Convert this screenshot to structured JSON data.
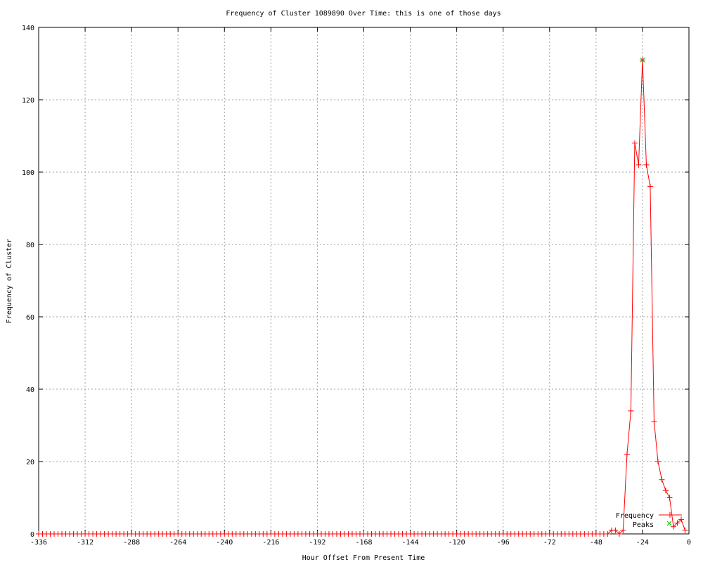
{
  "chart_data": {
    "type": "line",
    "title": "Frequency of Cluster 1089890 Over Time: this is one of those days",
    "xlabel": "Hour Offset From Present Time",
    "ylabel": "Frequency of Cluster",
    "xlim": [
      -336,
      0
    ],
    "ylim": [
      0,
      140
    ],
    "xticks": [
      "-336",
      "-312",
      "-288",
      "-264",
      "-240",
      "-216",
      "-192",
      "-168",
      "-144",
      "-120",
      "-96",
      "-72",
      "-48",
      "-24",
      "0"
    ],
    "yticks": [
      "0",
      "20",
      "40",
      "60",
      "80",
      "100",
      "120",
      "140"
    ],
    "grid": true,
    "legend_position": "bottom-right",
    "series": [
      {
        "name": "Frequency",
        "color": "#ff0000",
        "marker": "plus",
        "points": [
          [
            -336,
            0
          ],
          [
            -334,
            0
          ],
          [
            -332,
            0
          ],
          [
            -330,
            0
          ],
          [
            -328,
            0
          ],
          [
            -326,
            0
          ],
          [
            -324,
            0
          ],
          [
            -322,
            0
          ],
          [
            -320,
            0
          ],
          [
            -318,
            0
          ],
          [
            -316,
            0
          ],
          [
            -314,
            0
          ],
          [
            -312,
            0
          ],
          [
            -310,
            0
          ],
          [
            -308,
            0
          ],
          [
            -306,
            0
          ],
          [
            -304,
            0
          ],
          [
            -302,
            0
          ],
          [
            -300,
            0
          ],
          [
            -298,
            0
          ],
          [
            -296,
            0
          ],
          [
            -294,
            0
          ],
          [
            -292,
            0
          ],
          [
            -290,
            0
          ],
          [
            -288,
            0
          ],
          [
            -286,
            0
          ],
          [
            -284,
            0
          ],
          [
            -282,
            0
          ],
          [
            -280,
            0
          ],
          [
            -278,
            0
          ],
          [
            -276,
            0
          ],
          [
            -274,
            0
          ],
          [
            -272,
            0
          ],
          [
            -270,
            0
          ],
          [
            -268,
            0
          ],
          [
            -266,
            0
          ],
          [
            -264,
            0
          ],
          [
            -262,
            0
          ],
          [
            -260,
            0
          ],
          [
            -258,
            0
          ],
          [
            -256,
            0
          ],
          [
            -254,
            0
          ],
          [
            -252,
            0
          ],
          [
            -250,
            0
          ],
          [
            -248,
            0
          ],
          [
            -246,
            0
          ],
          [
            -244,
            0
          ],
          [
            -242,
            0
          ],
          [
            -240,
            0
          ],
          [
            -238,
            0
          ],
          [
            -236,
            0
          ],
          [
            -234,
            0
          ],
          [
            -232,
            0
          ],
          [
            -230,
            0
          ],
          [
            -228,
            0
          ],
          [
            -226,
            0
          ],
          [
            -224,
            0
          ],
          [
            -222,
            0
          ],
          [
            -220,
            0
          ],
          [
            -218,
            0
          ],
          [
            -216,
            0
          ],
          [
            -214,
            0
          ],
          [
            -212,
            0
          ],
          [
            -210,
            0
          ],
          [
            -208,
            0
          ],
          [
            -206,
            0
          ],
          [
            -204,
            0
          ],
          [
            -202,
            0
          ],
          [
            -200,
            0
          ],
          [
            -198,
            0
          ],
          [
            -196,
            0
          ],
          [
            -194,
            0
          ],
          [
            -192,
            0
          ],
          [
            -190,
            0
          ],
          [
            -188,
            0
          ],
          [
            -186,
            0
          ],
          [
            -184,
            0
          ],
          [
            -182,
            0
          ],
          [
            -180,
            0
          ],
          [
            -178,
            0
          ],
          [
            -176,
            0
          ],
          [
            -174,
            0
          ],
          [
            -172,
            0
          ],
          [
            -170,
            0
          ],
          [
            -168,
            0
          ],
          [
            -166,
            0
          ],
          [
            -164,
            0
          ],
          [
            -162,
            0
          ],
          [
            -160,
            0
          ],
          [
            -158,
            0
          ],
          [
            -156,
            0
          ],
          [
            -154,
            0
          ],
          [
            -152,
            0
          ],
          [
            -150,
            0
          ],
          [
            -148,
            0
          ],
          [
            -146,
            0
          ],
          [
            -144,
            0
          ],
          [
            -142,
            0
          ],
          [
            -140,
            0
          ],
          [
            -138,
            0
          ],
          [
            -136,
            0
          ],
          [
            -134,
            0
          ],
          [
            -132,
            0
          ],
          [
            -130,
            0
          ],
          [
            -128,
            0
          ],
          [
            -126,
            0
          ],
          [
            -124,
            0
          ],
          [
            -122,
            0
          ],
          [
            -120,
            0
          ],
          [
            -118,
            0
          ],
          [
            -116,
            0
          ],
          [
            -114,
            0
          ],
          [
            -112,
            0
          ],
          [
            -110,
            0
          ],
          [
            -108,
            0
          ],
          [
            -106,
            0
          ],
          [
            -104,
            0
          ],
          [
            -102,
            0
          ],
          [
            -100,
            0
          ],
          [
            -98,
            0
          ],
          [
            -96,
            0
          ],
          [
            -94,
            0
          ],
          [
            -92,
            0
          ],
          [
            -90,
            0
          ],
          [
            -88,
            0
          ],
          [
            -86,
            0
          ],
          [
            -84,
            0
          ],
          [
            -82,
            0
          ],
          [
            -80,
            0
          ],
          [
            -78,
            0
          ],
          [
            -76,
            0
          ],
          [
            -74,
            0
          ],
          [
            -72,
            0
          ],
          [
            -70,
            0
          ],
          [
            -68,
            0
          ],
          [
            -66,
            0
          ],
          [
            -64,
            0
          ],
          [
            -62,
            0
          ],
          [
            -60,
            0
          ],
          [
            -58,
            0
          ],
          [
            -56,
            0
          ],
          [
            -54,
            0
          ],
          [
            -52,
            0
          ],
          [
            -50,
            0
          ],
          [
            -48,
            0
          ],
          [
            -46,
            0
          ],
          [
            -44,
            0
          ],
          [
            -42,
            0
          ],
          [
            -40,
            1
          ],
          [
            -38,
            1
          ],
          [
            -36,
            0
          ],
          [
            -34,
            1
          ],
          [
            -32,
            22
          ],
          [
            -30,
            34
          ],
          [
            -28,
            108
          ],
          [
            -26,
            102
          ],
          [
            -24,
            131
          ],
          [
            -22,
            102
          ],
          [
            -20,
            96
          ],
          [
            -18,
            31
          ],
          [
            -16,
            20
          ],
          [
            -14,
            15
          ],
          [
            -12,
            12
          ],
          [
            -10,
            10
          ],
          [
            -8,
            2
          ],
          [
            -6,
            3
          ],
          [
            -4,
            4
          ],
          [
            -2,
            1
          ]
        ]
      },
      {
        "name": "Peaks",
        "color": "#00c000",
        "marker": "cross",
        "points": [
          [
            -24,
            131
          ]
        ]
      }
    ]
  }
}
